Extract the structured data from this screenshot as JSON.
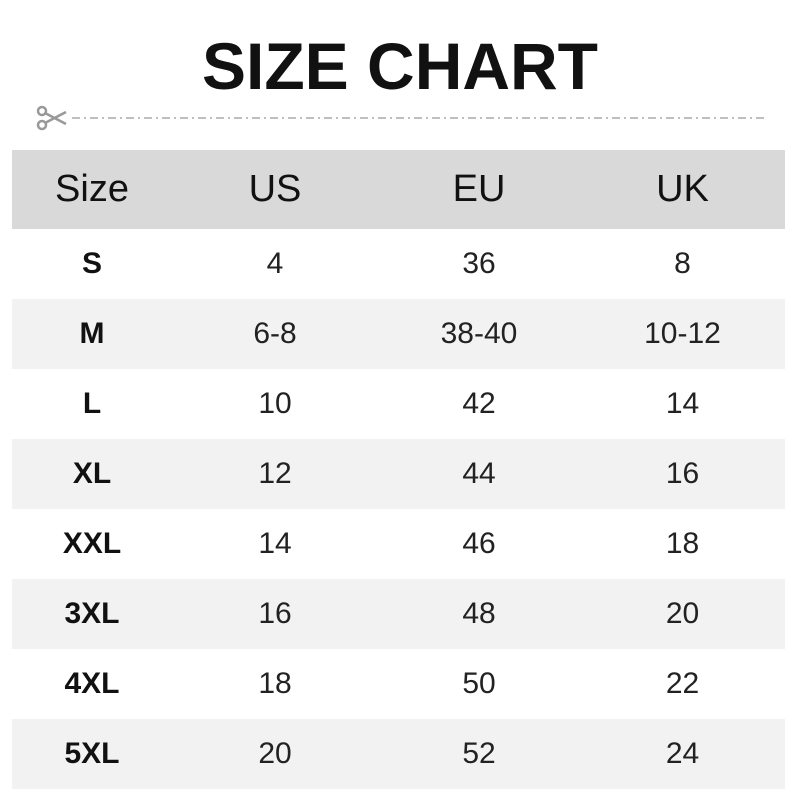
{
  "title": "SIZE CHART",
  "headers": [
    "Size",
    "US",
    "EU",
    "UK"
  ],
  "rows": [
    [
      "S",
      "4",
      "36",
      "8"
    ],
    [
      "M",
      "6-8",
      "38-40",
      "10-12"
    ],
    [
      "L",
      "10",
      "42",
      "14"
    ],
    [
      "XL",
      "12",
      "44",
      "16"
    ],
    [
      "XXL",
      "14",
      "46",
      "18"
    ],
    [
      "3XL",
      "16",
      "48",
      "20"
    ],
    [
      "4XL",
      "18",
      "50",
      "22"
    ],
    [
      "5XL",
      "20",
      "52",
      "24"
    ]
  ],
  "colors": {
    "header_bg": "#d9d9d9",
    "stripe_bg": "#f2f2f2",
    "cut_line": "#aaaaaa"
  },
  "icons": {
    "cut": "scissors-icon"
  }
}
